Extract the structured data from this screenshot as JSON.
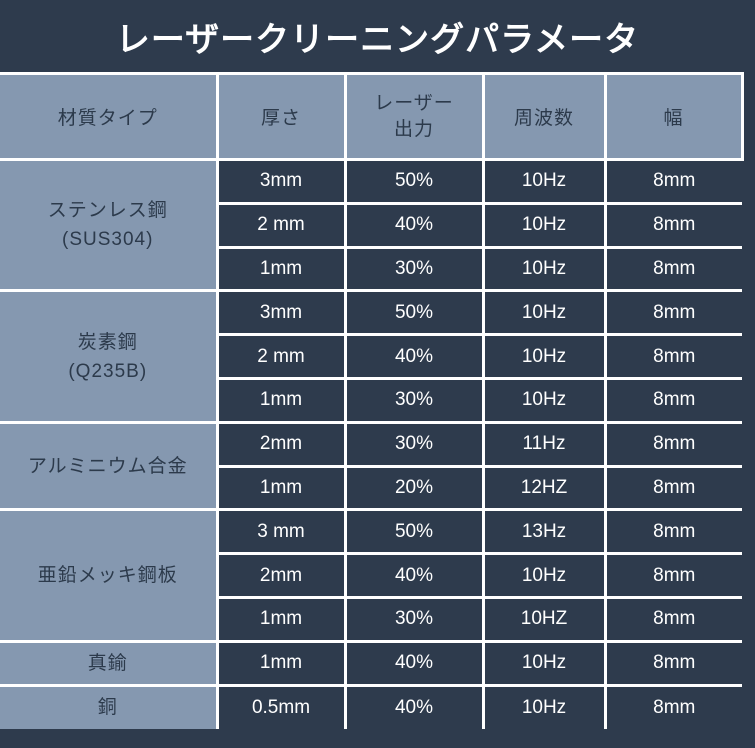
{
  "title": "レーザークリーニングパラメータ",
  "colors": {
    "background": "#2e3b4d",
    "data_cell_background": "#2e3b4d",
    "light_cell_background": "#8598b0",
    "gridline": "#ffffff",
    "title_text": "#ffffff",
    "data_text": "#ffffff",
    "dark_text": "#2c3a4b"
  },
  "table": {
    "header": {
      "material": "材質タイプ",
      "thickness": "厚さ",
      "power_line1": "レーザー",
      "power_line2": "出力",
      "frequency": "周波数",
      "width": "幅"
    },
    "groups": [
      {
        "material_lines": [
          "ステンレス鋼",
          "(SUS304)"
        ],
        "rows": [
          {
            "thickness": "3mm",
            "power": "50%",
            "frequency": "10Hz",
            "width": "8mm"
          },
          {
            "thickness": "2 mm",
            "power": "40%",
            "frequency": "10Hz",
            "width": "8mm"
          },
          {
            "thickness": "1mm",
            "power": "30%",
            "frequency": "10Hz",
            "width": "8mm"
          }
        ]
      },
      {
        "material_lines": [
          "炭素鋼",
          "(Q235B)"
        ],
        "rows": [
          {
            "thickness": "3mm",
            "power": "50%",
            "frequency": "10Hz",
            "width": "8mm"
          },
          {
            "thickness": "2 mm",
            "power": "40%",
            "frequency": "10Hz",
            "width": "8mm"
          },
          {
            "thickness": "1mm",
            "power": "30%",
            "frequency": "10Hz",
            "width": "8mm"
          }
        ]
      },
      {
        "material_lines": [
          "アルミニウム合金"
        ],
        "rows": [
          {
            "thickness": "2mm",
            "power": "30%",
            "frequency": "11Hz",
            "width": "8mm"
          },
          {
            "thickness": "1mm",
            "power": "20%",
            "frequency": "12HZ",
            "width": "8mm"
          }
        ]
      },
      {
        "material_lines": [
          "亜鉛メッキ鋼板"
        ],
        "rows": [
          {
            "thickness": "3 mm",
            "power": "50%",
            "frequency": "13Hz",
            "width": "8mm"
          },
          {
            "thickness": "2mm",
            "power": "40%",
            "frequency": "10Hz",
            "width": "8mm"
          },
          {
            "thickness": "1mm",
            "power": "30%",
            "frequency": "10HZ",
            "width": "8mm"
          }
        ]
      },
      {
        "material_lines": [
          "真鍮"
        ],
        "rows": [
          {
            "thickness": "1mm",
            "power": "40%",
            "frequency": "10Hz",
            "width": "8mm"
          }
        ]
      },
      {
        "material_lines": [
          "銅"
        ],
        "rows": [
          {
            "thickness": "0.5mm",
            "power": "40%",
            "frequency": "10Hz",
            "width": "8mm"
          }
        ]
      }
    ]
  },
  "chart_data": {
    "type": "table",
    "title": "レーザークリーニングパラメータ",
    "columns": [
      "材質タイプ",
      "厚さ",
      "レーザー出力",
      "周波数",
      "幅"
    ],
    "rows": [
      [
        "ステンレス鋼 (SUS304)",
        "3mm",
        "50%",
        "10Hz",
        "8mm"
      ],
      [
        "ステンレス鋼 (SUS304)",
        "2 mm",
        "40%",
        "10Hz",
        "8mm"
      ],
      [
        "ステンレス鋼 (SUS304)",
        "1mm",
        "30%",
        "10Hz",
        "8mm"
      ],
      [
        "炭素鋼 (Q235B)",
        "3mm",
        "50%",
        "10Hz",
        "8mm"
      ],
      [
        "炭素鋼 (Q235B)",
        "2 mm",
        "40%",
        "10Hz",
        "8mm"
      ],
      [
        "炭素鋼 (Q235B)",
        "1mm",
        "30%",
        "10Hz",
        "8mm"
      ],
      [
        "アルミニウム合金",
        "2mm",
        "30%",
        "11Hz",
        "8mm"
      ],
      [
        "アルミニウム合金",
        "1mm",
        "20%",
        "12HZ",
        "8mm"
      ],
      [
        "亜鉛メッキ鋼板",
        "3 mm",
        "50%",
        "13Hz",
        "8mm"
      ],
      [
        "亜鉛メッキ鋼板",
        "2mm",
        "40%",
        "10Hz",
        "8mm"
      ],
      [
        "亜鉛メッキ鋼板",
        "1mm",
        "30%",
        "10HZ",
        "8mm"
      ],
      [
        "真鍮",
        "1mm",
        "40%",
        "10Hz",
        "8mm"
      ],
      [
        "銅",
        "0.5mm",
        "40%",
        "10Hz",
        "8mm"
      ]
    ]
  }
}
